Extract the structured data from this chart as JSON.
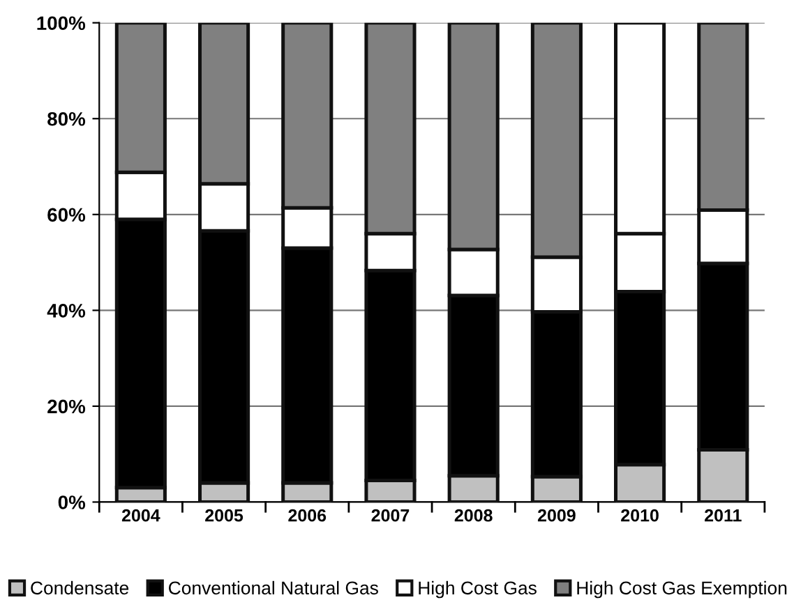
{
  "chart_data": {
    "type": "bar",
    "stacked": true,
    "categories": [
      "2004",
      "2005",
      "2006",
      "2007",
      "2008",
      "2009",
      "2010",
      "2011"
    ],
    "series": [
      {
        "name": "Condensate",
        "color": "#c0c0c0",
        "values": [
          3,
          4,
          4,
          4.5,
          5.5,
          5.3,
          7.8,
          10.9
        ]
      },
      {
        "name": "Conventional Natural Gas",
        "color": "#000000",
        "values": [
          56,
          52.6,
          49,
          43.8,
          37.6,
          34.4,
          36.1,
          38.9
        ]
      },
      {
        "name": "High Cost Gas",
        "color": "#ffffff",
        "values": [
          9.8,
          9.8,
          8.4,
          7.7,
          9.6,
          11.4,
          12.1,
          11.1
        ]
      },
      {
        "name": "High Cost Gas Exemption",
        "color": "#808080",
        "colors": [
          "#808080",
          "#808080",
          "#808080",
          "#808080",
          "#808080",
          "#808080",
          "#ffffff",
          "#808080"
        ],
        "values": [
          31.2,
          33.6,
          38.6,
          44,
          47.3,
          48.9,
          44,
          39.1
        ]
      }
    ],
    "ylim": [
      0,
      100
    ],
    "yticks": [
      {
        "value": 0,
        "label": "0%"
      },
      {
        "value": 20,
        "label": "20%"
      },
      {
        "value": 40,
        "label": "40%"
      },
      {
        "value": 60,
        "label": "60%"
      },
      {
        "value": 80,
        "label": "80%"
      },
      {
        "value": 100,
        "label": "100%"
      }
    ],
    "grid": "y",
    "legend": "bottom"
  }
}
